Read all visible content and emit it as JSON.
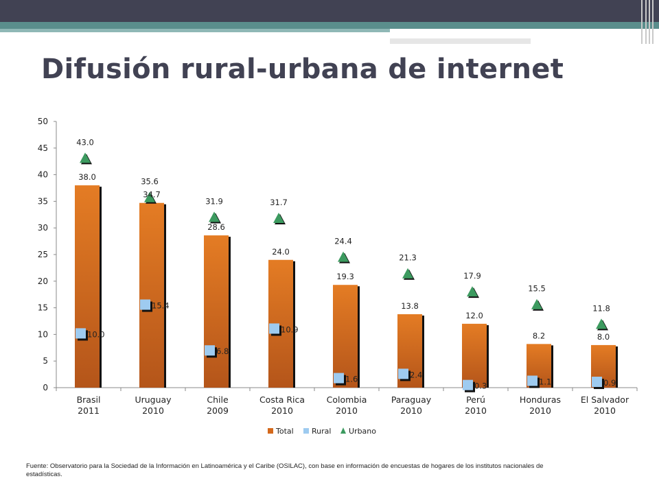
{
  "slide": {
    "title": "Difusión rural-urbana de internet",
    "source": "Fuente: Observatorio para la Sociedad de la Información en Latinoamérica y el Caribe (OSILAC), con base en información de encuestas de hogares de los institutos nacionales de estadísticas."
  },
  "colors": {
    "header_bar": "#414253",
    "teal": "#5a8e8c",
    "total": "#d4691c",
    "rural": "#9ecbf0",
    "urbano": "#3c9a5f"
  },
  "chart_data": {
    "type": "bar",
    "categories": [
      [
        "Brasil",
        "2011"
      ],
      [
        "Uruguay",
        "2010"
      ],
      [
        "Chile",
        "2009"
      ],
      [
        "Costa Rica",
        "2010"
      ],
      [
        "Colombia",
        "2010"
      ],
      [
        "Paraguay",
        "2010"
      ],
      [
        "Perú",
        "2010"
      ],
      [
        "Honduras",
        "2010"
      ],
      [
        "El Salvador",
        "2010"
      ]
    ],
    "series": [
      {
        "name": "Total",
        "marker": "bar",
        "values": [
          38.0,
          34.7,
          28.6,
          24.0,
          19.3,
          13.8,
          12.0,
          8.2,
          8.0
        ],
        "labels": [
          "38.0",
          "34.7",
          "28.6",
          "24.0",
          "19.3",
          "13.8",
          "12.0",
          "8.2",
          "8.0"
        ]
      },
      {
        "name": "Rural",
        "marker": "square",
        "values": [
          10.0,
          15.4,
          6.8,
          10.9,
          1.6,
          2.4,
          0.3,
          1.1,
          0.9
        ],
        "labels": [
          "10.0",
          "15.4",
          "6.8",
          "10.9",
          "1.6",
          "2.4",
          "0.3",
          "1.1",
          "0.9"
        ]
      },
      {
        "name": "Urbano",
        "marker": "triangle",
        "values": [
          43.0,
          35.6,
          31.9,
          31.7,
          24.4,
          21.3,
          17.9,
          15.5,
          11.8
        ],
        "labels": [
          "43.0",
          "35.6",
          "31.9",
          "31.7",
          "24.4",
          "21.3",
          "17.9",
          "15.5",
          "11.8"
        ]
      }
    ],
    "ylim": [
      0,
      50
    ],
    "yticks": [
      0,
      5,
      10,
      15,
      20,
      25,
      30,
      35,
      40,
      45,
      50
    ],
    "ytick_labels": [
      "0",
      "5",
      "10",
      "15",
      "20",
      "25",
      "30",
      "35",
      "40",
      "45",
      "50"
    ],
    "grid": false,
    "legend_position": "bottom"
  }
}
